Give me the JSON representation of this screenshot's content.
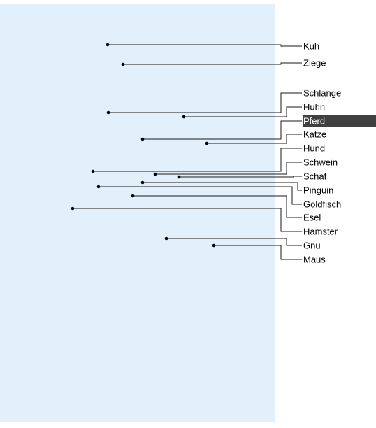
{
  "labels": [
    {
      "text": "Kuh"
    },
    {
      "text": "Ziege"
    },
    {
      "text": "Schlange"
    },
    {
      "text": "Huhn"
    },
    {
      "text": "Pferd",
      "selected": true
    },
    {
      "text": "Katze"
    },
    {
      "text": "Hund"
    },
    {
      "text": "Schwein"
    },
    {
      "text": "Schaf"
    },
    {
      "text": "Pinguin"
    },
    {
      "text": "Goldfisch"
    },
    {
      "text": "Esel"
    },
    {
      "text": "Hamster"
    },
    {
      "text": "Gnu"
    },
    {
      "text": "Maus"
    }
  ],
  "colors": {
    "panel": "#e1f0fa",
    "selection": "#404040",
    "selection_text": "#ffffff",
    "leader": "#1a1a1a"
  }
}
